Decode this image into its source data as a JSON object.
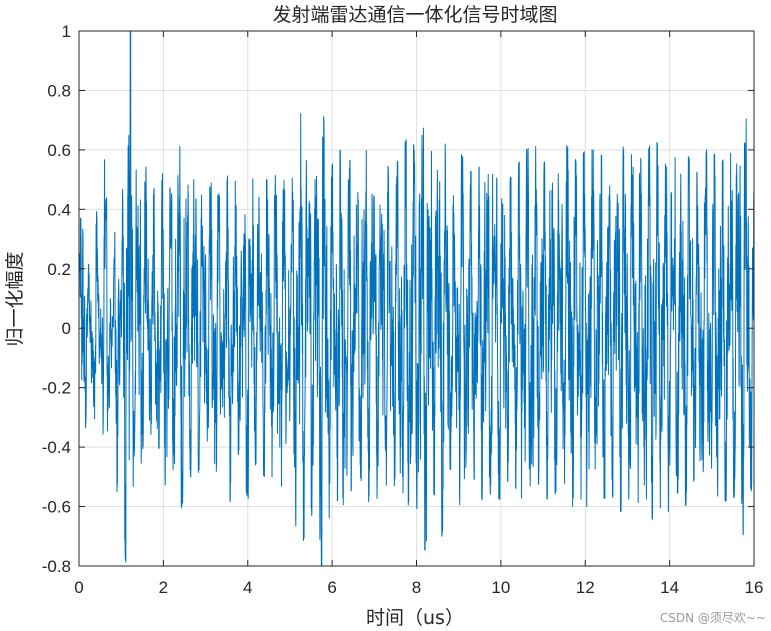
{
  "chart_data": {
    "type": "line",
    "title": "发射端雷达通信一体化信号时域图",
    "xlabel": "时间（us）",
    "ylabel": "归一化幅度",
    "xlim": [
      0,
      16
    ],
    "ylim": [
      -0.8,
      1
    ],
    "xticks": [
      0,
      2,
      4,
      6,
      8,
      10,
      12,
      14,
      16
    ],
    "yticks": [
      -0.8,
      -0.6,
      -0.4,
      -0.2,
      0,
      0.2,
      0.4,
      0.6,
      0.8,
      1
    ],
    "xtick_labels": [
      "0",
      "2",
      "4",
      "6",
      "8",
      "10",
      "12",
      "14",
      "16"
    ],
    "ytick_labels": [
      "-0.8",
      "-0.6",
      "-0.4",
      "-0.2",
      "0",
      "0.2",
      "0.4",
      "0.6",
      "0.8",
      "1"
    ],
    "grid": true,
    "box": true,
    "series": [
      {
        "color": "#0072BD",
        "description_samples": {
          "x": [
            0,
            0.1,
            0.2,
            0.3,
            0.4,
            0.5,
            0.6,
            0.7,
            0.8,
            0.9,
            1.0,
            1.1,
            1.2,
            1.3,
            1.4,
            1.5,
            1.6,
            1.7,
            1.8,
            1.9,
            2.0,
            2.2,
            2.4,
            2.6,
            2.8,
            3.0,
            3.2,
            3.4,
            3.6,
            3.8,
            4.0,
            4.2,
            4.4,
            4.6,
            4.8,
            5.0,
            5.2,
            5.4,
            5.6,
            5.8,
            6.0,
            6.2,
            6.4,
            6.6,
            6.8,
            7.0,
            7.2,
            7.4,
            7.6,
            7.8,
            8.0,
            8.2,
            8.4,
            8.6,
            8.8,
            9.0,
            9.2,
            9.4,
            9.6,
            9.8,
            10.0,
            10.2,
            10.4,
            10.6,
            10.8,
            11.0,
            11.2,
            11.4,
            11.6,
            11.8,
            12.0,
            12.2,
            12.4,
            12.6,
            12.8,
            13.0,
            13.2,
            13.4,
            13.6,
            13.8,
            14.0,
            14.2,
            14.4,
            14.6,
            14.8,
            15.0,
            15.2,
            15.4,
            15.6,
            15.8,
            16.0
          ],
          "y": [
            0.3,
            0.5,
            -0.2,
            0.25,
            -0.45,
            0.1,
            -0.58,
            0.35,
            -0.1,
            0.55,
            -0.3,
            0.78,
            1.0,
            -0.45,
            0.6,
            -0.5,
            0.55,
            -0.35,
            0.5,
            -0.4,
            0.55,
            -0.45,
            0.62,
            -0.5,
            0.5,
            -0.4,
            0.55,
            -0.38,
            0.6,
            -0.4,
            0.58,
            -0.45,
            0.5,
            -0.5,
            0.55,
            -0.4,
            0.78,
            -0.67,
            0.6,
            -0.8,
            0.55,
            -0.6,
            0.58,
            -0.45,
            0.6,
            -0.55,
            0.62,
            -0.5,
            0.58,
            -0.65,
            0.6,
            -0.75,
            0.55,
            -0.7,
            0.5,
            -0.6,
            0.55,
            -0.5,
            0.6,
            -0.55,
            0.58,
            -0.5,
            0.55,
            -0.6,
            0.62,
            -0.55,
            0.6,
            -0.5,
            0.65,
            -0.55,
            0.6,
            -0.6,
            0.58,
            -0.55,
            0.62,
            -0.6,
            0.6,
            -0.55,
            0.65,
            -0.6,
            0.62,
            -0.55,
            0.6,
            -0.5,
            0.6,
            -0.6,
            0.55,
            -0.6,
            0.55,
            -0.75,
            0.45
          ]
        }
      }
    ],
    "watermark": "CSDN @须尽欢~~"
  }
}
